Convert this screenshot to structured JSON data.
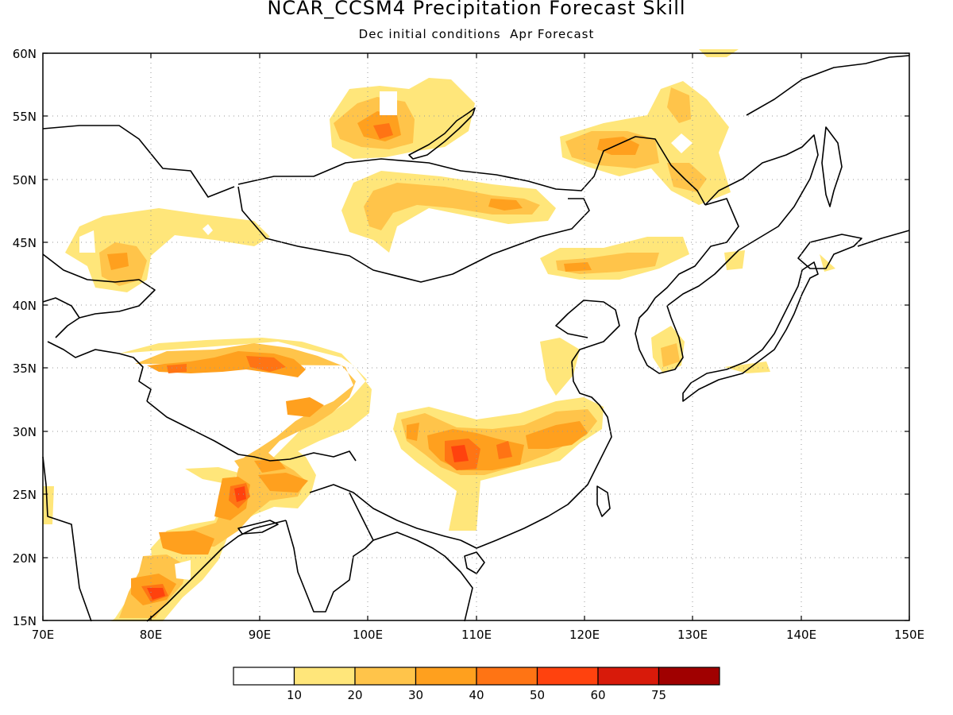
{
  "header": {
    "title": "NCAR_CCSM4 Precipitation Forecast Skill",
    "subtitle": "Dec initial conditions  Apr Forecast"
  },
  "map": {
    "lon_range": [
      70,
      150
    ],
    "lat_range": [
      15,
      60
    ],
    "lon_labels": [
      "70E",
      "80E",
      "90E",
      "100E",
      "110E",
      "120E",
      "130E",
      "140E",
      "150E"
    ],
    "lat_labels": [
      "15N",
      "20N",
      "25N",
      "30N",
      "35N",
      "40N",
      "45N",
      "50N",
      "55N",
      "60N"
    ],
    "gridlines": "dotted"
  },
  "colorbar": {
    "labels": [
      "10",
      "20",
      "30",
      "40",
      "50",
      "60",
      "75"
    ],
    "colors": [
      "#ffffff",
      "#ffe67a",
      "#ffc44a",
      "#ffa01e",
      "#ff7414",
      "#ff420e",
      "#d81a0a",
      "#a00000"
    ]
  }
}
